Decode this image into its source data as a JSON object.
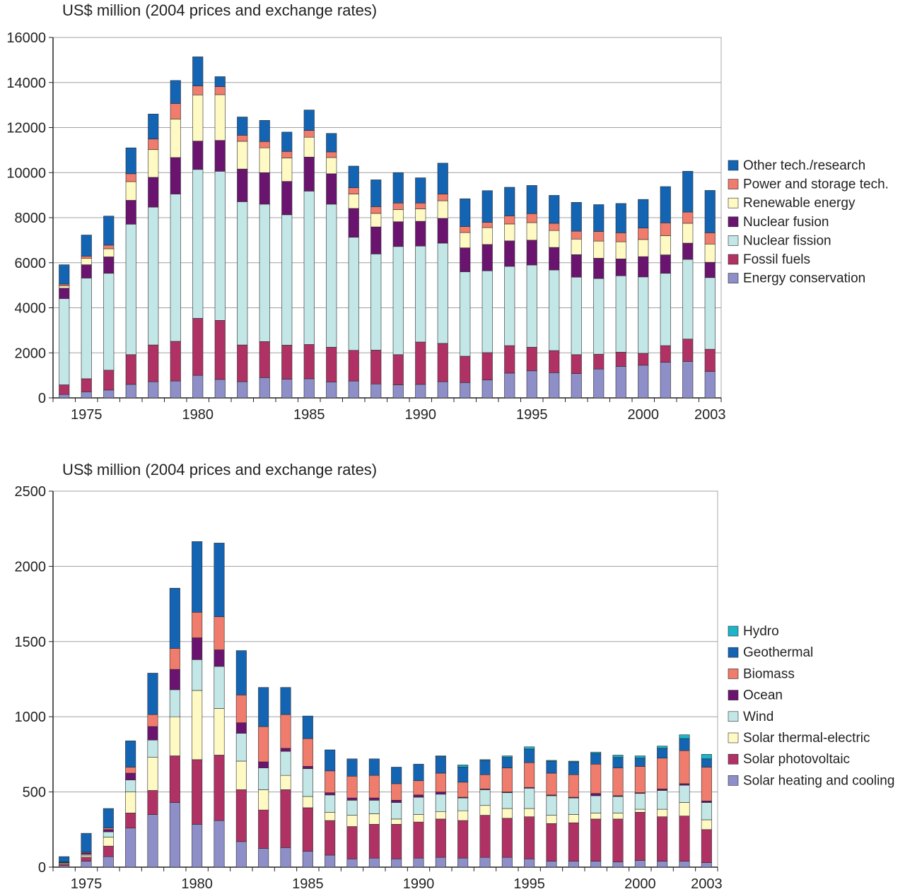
{
  "chart_data": [
    {
      "type": "bar",
      "stacked": true,
      "title": "",
      "ylabel": "US$ million (2004 prices and exchange rates)",
      "xlabel": "",
      "ylim": [
        0,
        16000
      ],
      "yticks": [
        0,
        2000,
        4000,
        6000,
        8000,
        10000,
        12000,
        14000,
        16000
      ],
      "x_tick_labels": [
        "1975",
        "1980",
        "1985",
        "1990",
        "1995",
        "2000",
        "2003"
      ],
      "grid": "horizontal",
      "legend_position": "right",
      "categories": [
        "1974",
        "1975",
        "1976",
        "1977",
        "1978",
        "1979",
        "1980",
        "1981",
        "1982",
        "1983",
        "1984",
        "1985",
        "1986",
        "1987",
        "1988",
        "1989",
        "1990",
        "1991",
        "1992",
        "1993",
        "1994",
        "1995",
        "1996",
        "1997",
        "1998",
        "1999",
        "2000",
        "2001",
        "2002",
        "2003"
      ],
      "series": [
        {
          "name": "Energy conservation",
          "color": "#8e8fc8",
          "values": [
            150,
            270,
            350,
            600,
            720,
            750,
            1000,
            820,
            720,
            900,
            830,
            850,
            710,
            750,
            620,
            580,
            600,
            720,
            680,
            800,
            1100,
            1200,
            1120,
            1080,
            1280,
            1400,
            1450,
            1580,
            1620,
            1170
          ]
        },
        {
          "name": "Fossil fuels",
          "color": "#b03264",
          "values": [
            430,
            580,
            880,
            1320,
            1630,
            1760,
            2530,
            2620,
            1630,
            1600,
            1510,
            1520,
            1540,
            1360,
            1500,
            1340,
            1880,
            1700,
            1170,
            1210,
            1220,
            1050,
            980,
            840,
            660,
            630,
            530,
            740,
            990,
            990
          ]
        },
        {
          "name": "Nuclear fission",
          "color": "#c3e6e6",
          "values": [
            3830,
            4470,
            4300,
            5790,
            6120,
            6540,
            6610,
            6620,
            6360,
            6100,
            5790,
            6810,
            6350,
            5020,
            4270,
            4800,
            4260,
            4450,
            3750,
            3630,
            3520,
            3650,
            3580,
            3440,
            3360,
            3390,
            3390,
            3210,
            3540,
            3180
          ]
        },
        {
          "name": "Nuclear fusion",
          "color": "#6a1470",
          "values": [
            460,
            590,
            730,
            1060,
            1320,
            1620,
            1260,
            1370,
            1450,
            1400,
            1480,
            1510,
            1350,
            1280,
            1200,
            1100,
            1100,
            1100,
            1060,
            1170,
            1130,
            1100,
            1000,
            1000,
            900,
            750,
            900,
            820,
            720,
            680
          ]
        },
        {
          "name": "Renewable energy",
          "color": "#fffac4",
          "values": [
            100,
            280,
            360,
            830,
            1230,
            1710,
            2050,
            2030,
            1230,
            1100,
            1040,
            880,
            720,
            640,
            600,
            540,
            550,
            780,
            680,
            750,
            750,
            780,
            750,
            690,
            760,
            760,
            760,
            850,
            880,
            810
          ]
        },
        {
          "name": "Power and storage tech.",
          "color": "#ef7c6c",
          "values": [
            80,
            100,
            160,
            350,
            470,
            690,
            400,
            360,
            270,
            280,
            290,
            300,
            250,
            280,
            300,
            290,
            260,
            300,
            270,
            230,
            360,
            400,
            320,
            350,
            430,
            400,
            510,
            570,
            500,
            500
          ]
        },
        {
          "name": "Other tech./research",
          "color": "#1464b4",
          "values": [
            860,
            940,
            1290,
            1150,
            1110,
            1020,
            1290,
            440,
            810,
            940,
            860,
            910,
            820,
            960,
            1190,
            1350,
            1120,
            1370,
            1230,
            1410,
            1270,
            1250,
            1240,
            1280,
            1190,
            1300,
            1270,
            1610,
            1810,
            1880
          ]
        }
      ]
    },
    {
      "type": "bar",
      "stacked": true,
      "title": "",
      "ylabel": "US$ million (2004 prices and exchange rates)",
      "xlabel": "",
      "ylim": [
        0,
        2500
      ],
      "yticks": [
        0,
        500,
        1000,
        1500,
        2000,
        2500
      ],
      "x_tick_labels": [
        "1975",
        "1980",
        "1985",
        "1990",
        "1995",
        "2000",
        "2003"
      ],
      "grid": "horizontal",
      "legend_position": "right",
      "categories": [
        "1974",
        "1975",
        "1976",
        "1977",
        "1978",
        "1979",
        "1980",
        "1981",
        "1982",
        "1983",
        "1984",
        "1985",
        "1986",
        "1987",
        "1988",
        "1989",
        "1990",
        "1991",
        "1992",
        "1993",
        "1994",
        "1995",
        "1996",
        "1997",
        "1998",
        "1999",
        "2000",
        "2001",
        "2002",
        "2003"
      ],
      "series": [
        {
          "name": "Solar heating and cooling",
          "color": "#8e8fc8",
          "values": [
            10,
            40,
            70,
            260,
            350,
            430,
            285,
            310,
            170,
            125,
            130,
            105,
            80,
            55,
            60,
            55,
            60,
            65,
            60,
            65,
            65,
            55,
            40,
            40,
            40,
            35,
            45,
            40,
            40,
            30
          ]
        },
        {
          "name": "Solar photovoltaic",
          "color": "#b03264",
          "values": [
            10,
            25,
            70,
            100,
            160,
            310,
            430,
            435,
            345,
            255,
            385,
            290,
            230,
            215,
            225,
            230,
            240,
            255,
            250,
            280,
            260,
            280,
            250,
            255,
            280,
            285,
            320,
            295,
            300,
            220
          ]
        },
        {
          "name": "Solar thermal-electric",
          "color": "#fffac4",
          "values": [
            5,
            10,
            60,
            140,
            220,
            260,
            460,
            310,
            190,
            135,
            95,
            75,
            55,
            75,
            70,
            35,
            50,
            50,
            65,
            65,
            65,
            55,
            55,
            55,
            40,
            40,
            20,
            50,
            90,
            65
          ]
        },
        {
          "name": "Wind",
          "color": "#c3e6e6",
          "values": [
            5,
            10,
            35,
            80,
            115,
            180,
            205,
            280,
            185,
            145,
            160,
            185,
            115,
            100,
            90,
            110,
            115,
            115,
            85,
            105,
            105,
            135,
            130,
            110,
            115,
            110,
            105,
            125,
            115,
            115
          ]
        },
        {
          "name": "Ocean",
          "color": "#6a1470",
          "values": [
            2,
            10,
            15,
            45,
            90,
            135,
            145,
            110,
            70,
            40,
            20,
            15,
            15,
            15,
            15,
            15,
            15,
            15,
            5,
            5,
            5,
            5,
            5,
            5,
            15,
            5,
            5,
            10,
            10,
            10
          ]
        },
        {
          "name": "Biomass",
          "color": "#ef7c6c",
          "values": [
            3,
            5,
            10,
            40,
            80,
            140,
            170,
            220,
            185,
            235,
            225,
            185,
            145,
            145,
            150,
            110,
            95,
            125,
            100,
            95,
            160,
            165,
            145,
            150,
            195,
            185,
            175,
            205,
            220,
            225
          ]
        },
        {
          "name": "Geothermal",
          "color": "#1464b4",
          "values": [
            35,
            125,
            130,
            175,
            275,
            400,
            470,
            490,
            295,
            260,
            180,
            150,
            140,
            115,
            110,
            110,
            110,
            110,
            100,
            95,
            70,
            90,
            80,
            85,
            70,
            70,
            55,
            65,
            80,
            55
          ]
        },
        {
          "name": "Hydro",
          "color": "#1eb4c8",
          "values": [
            0,
            0,
            0,
            0,
            0,
            0,
            0,
            0,
            0,
            0,
            0,
            0,
            0,
            0,
            0,
            0,
            0,
            5,
            15,
            5,
            10,
            15,
            5,
            5,
            10,
            15,
            15,
            15,
            25,
            30
          ]
        }
      ]
    }
  ]
}
